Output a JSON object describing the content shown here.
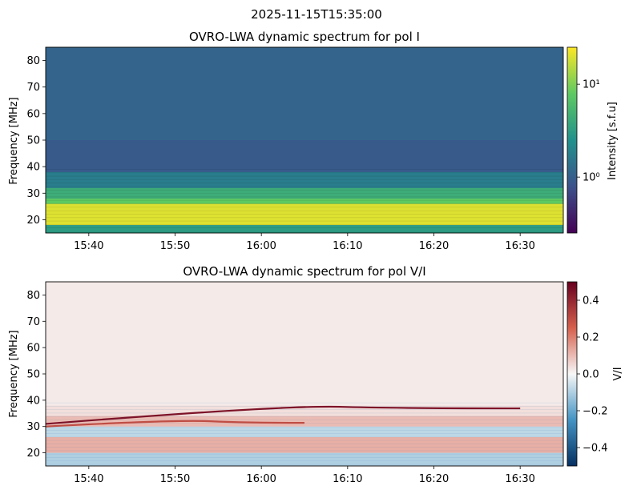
{
  "figure": {
    "suptitle": "2025-11-15T15:35:00"
  },
  "chart_data": [
    {
      "type": "heatmap",
      "title": "OVRO-LWA dynamic spectrum for pol I",
      "xlabel": "",
      "ylabel": "Frequency [MHz]",
      "x_range": [
        "15:35",
        "16:35"
      ],
      "xticks": [
        "15:40",
        "15:50",
        "16:00",
        "16:10",
        "16:20",
        "16:30"
      ],
      "ylim": [
        15,
        85
      ],
      "yticks": [
        20,
        30,
        40,
        50,
        60,
        70,
        80
      ],
      "colorbar": {
        "label": "Intensity [s.f.u]",
        "scale": "log",
        "range": [
          0.25,
          25
        ],
        "ticks": [
          {
            "value": 1,
            "label": "10⁰"
          },
          {
            "value": 10,
            "label": "10¹"
          }
        ],
        "colormap": "viridis",
        "colors": [
          "#440154",
          "#3b528b",
          "#21918c",
          "#5ec962",
          "#fde725"
        ]
      },
      "bands": [
        {
          "f_low": 15,
          "f_high": 18,
          "level": 0.55
        },
        {
          "f_low": 18,
          "f_high": 26,
          "level": 0.95
        },
        {
          "f_low": 26,
          "f_high": 28,
          "level": 0.75
        },
        {
          "f_low": 28,
          "f_high": 32,
          "level": 0.62
        },
        {
          "f_low": 32,
          "f_high": 38,
          "level": 0.42
        },
        {
          "f_low": 38,
          "f_high": 50,
          "level": 0.28
        },
        {
          "f_low": 50,
          "f_high": 85,
          "level": 0.32
        }
      ]
    },
    {
      "type": "heatmap",
      "title": "OVRO-LWA dynamic spectrum for pol V/I",
      "xlabel": "",
      "ylabel": "Frequency [MHz]",
      "x_range": [
        "15:35",
        "16:35"
      ],
      "xticks": [
        "15:40",
        "15:50",
        "16:00",
        "16:10",
        "16:20",
        "16:30"
      ],
      "ylim": [
        15,
        85
      ],
      "yticks": [
        20,
        30,
        40,
        50,
        60,
        70,
        80
      ],
      "colorbar": {
        "label": "V/I",
        "scale": "linear",
        "range": [
          -0.5,
          0.5
        ],
        "ticks": [
          {
            "value": 0.4,
            "label": "0.4"
          },
          {
            "value": 0.2,
            "label": "0.2"
          },
          {
            "value": 0.0,
            "label": "0.0"
          },
          {
            "value": -0.2,
            "label": "−0.2"
          },
          {
            "value": -0.4,
            "label": "−0.4"
          }
        ],
        "colormap": "RdBu_r",
        "colors": [
          "#053061",
          "#4393c3",
          "#f7f7f7",
          "#d6604d",
          "#67001f"
        ]
      },
      "bands": [
        {
          "f_low": 15,
          "f_high": 20,
          "value": -0.1
        },
        {
          "f_low": 20,
          "f_high": 26,
          "value": 0.12
        },
        {
          "f_low": 26,
          "f_high": 30,
          "value": -0.08
        },
        {
          "f_low": 30,
          "f_high": 34,
          "value": 0.1
        },
        {
          "f_low": 34,
          "f_high": 38,
          "value": 0.04
        },
        {
          "f_low": 38,
          "f_high": 85,
          "value": 0.02
        }
      ],
      "features": [
        {
          "start": "15:35",
          "end": "16:30",
          "f_start": 31,
          "f_peak": 37.5,
          "value": 0.45
        },
        {
          "start": "15:35",
          "end": "16:05",
          "f_start": 30,
          "f_peak": 32,
          "value": 0.3
        }
      ]
    }
  ]
}
